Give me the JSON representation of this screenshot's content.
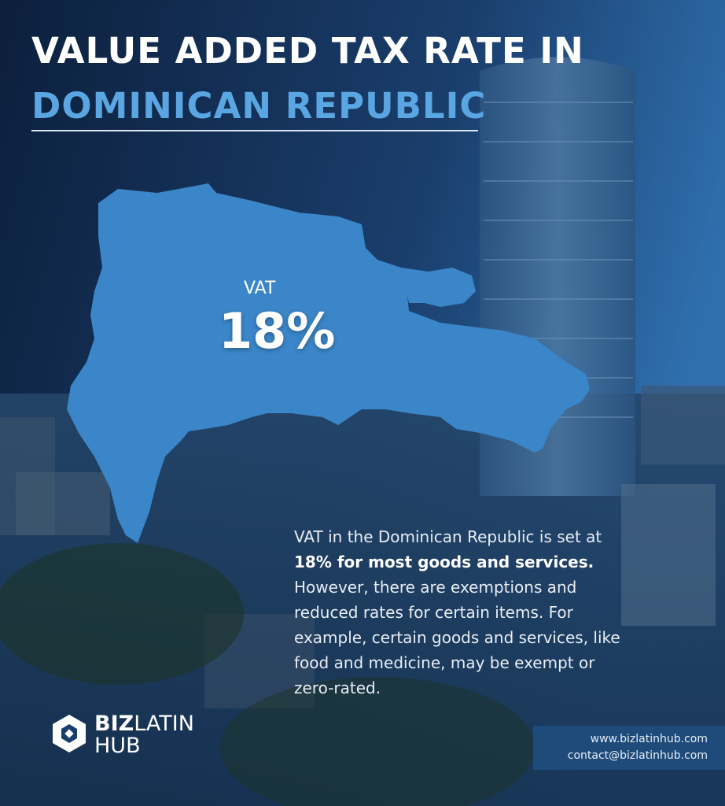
{
  "header": {
    "title_line1": "VALUE ADDED TAX RATE IN",
    "title_line2": "DOMINICAN REPUBLIC"
  },
  "map": {
    "label": "VAT",
    "value": "18%"
  },
  "body": {
    "intro": "VAT in the Dominican Republic is set at",
    "highlight": "18% for most goods and services.",
    "rest": "However, there are exemptions and reduced rates for certain items. For example, certain goods and services, like food and medicine, may be exempt or zero-rated."
  },
  "logo": {
    "bold": "BIZ",
    "regular": "LATIN",
    "line2": "HUB"
  },
  "contact": {
    "website": "www.bizlatinhub.com",
    "email": "contact@bizlatinhub.com"
  }
}
